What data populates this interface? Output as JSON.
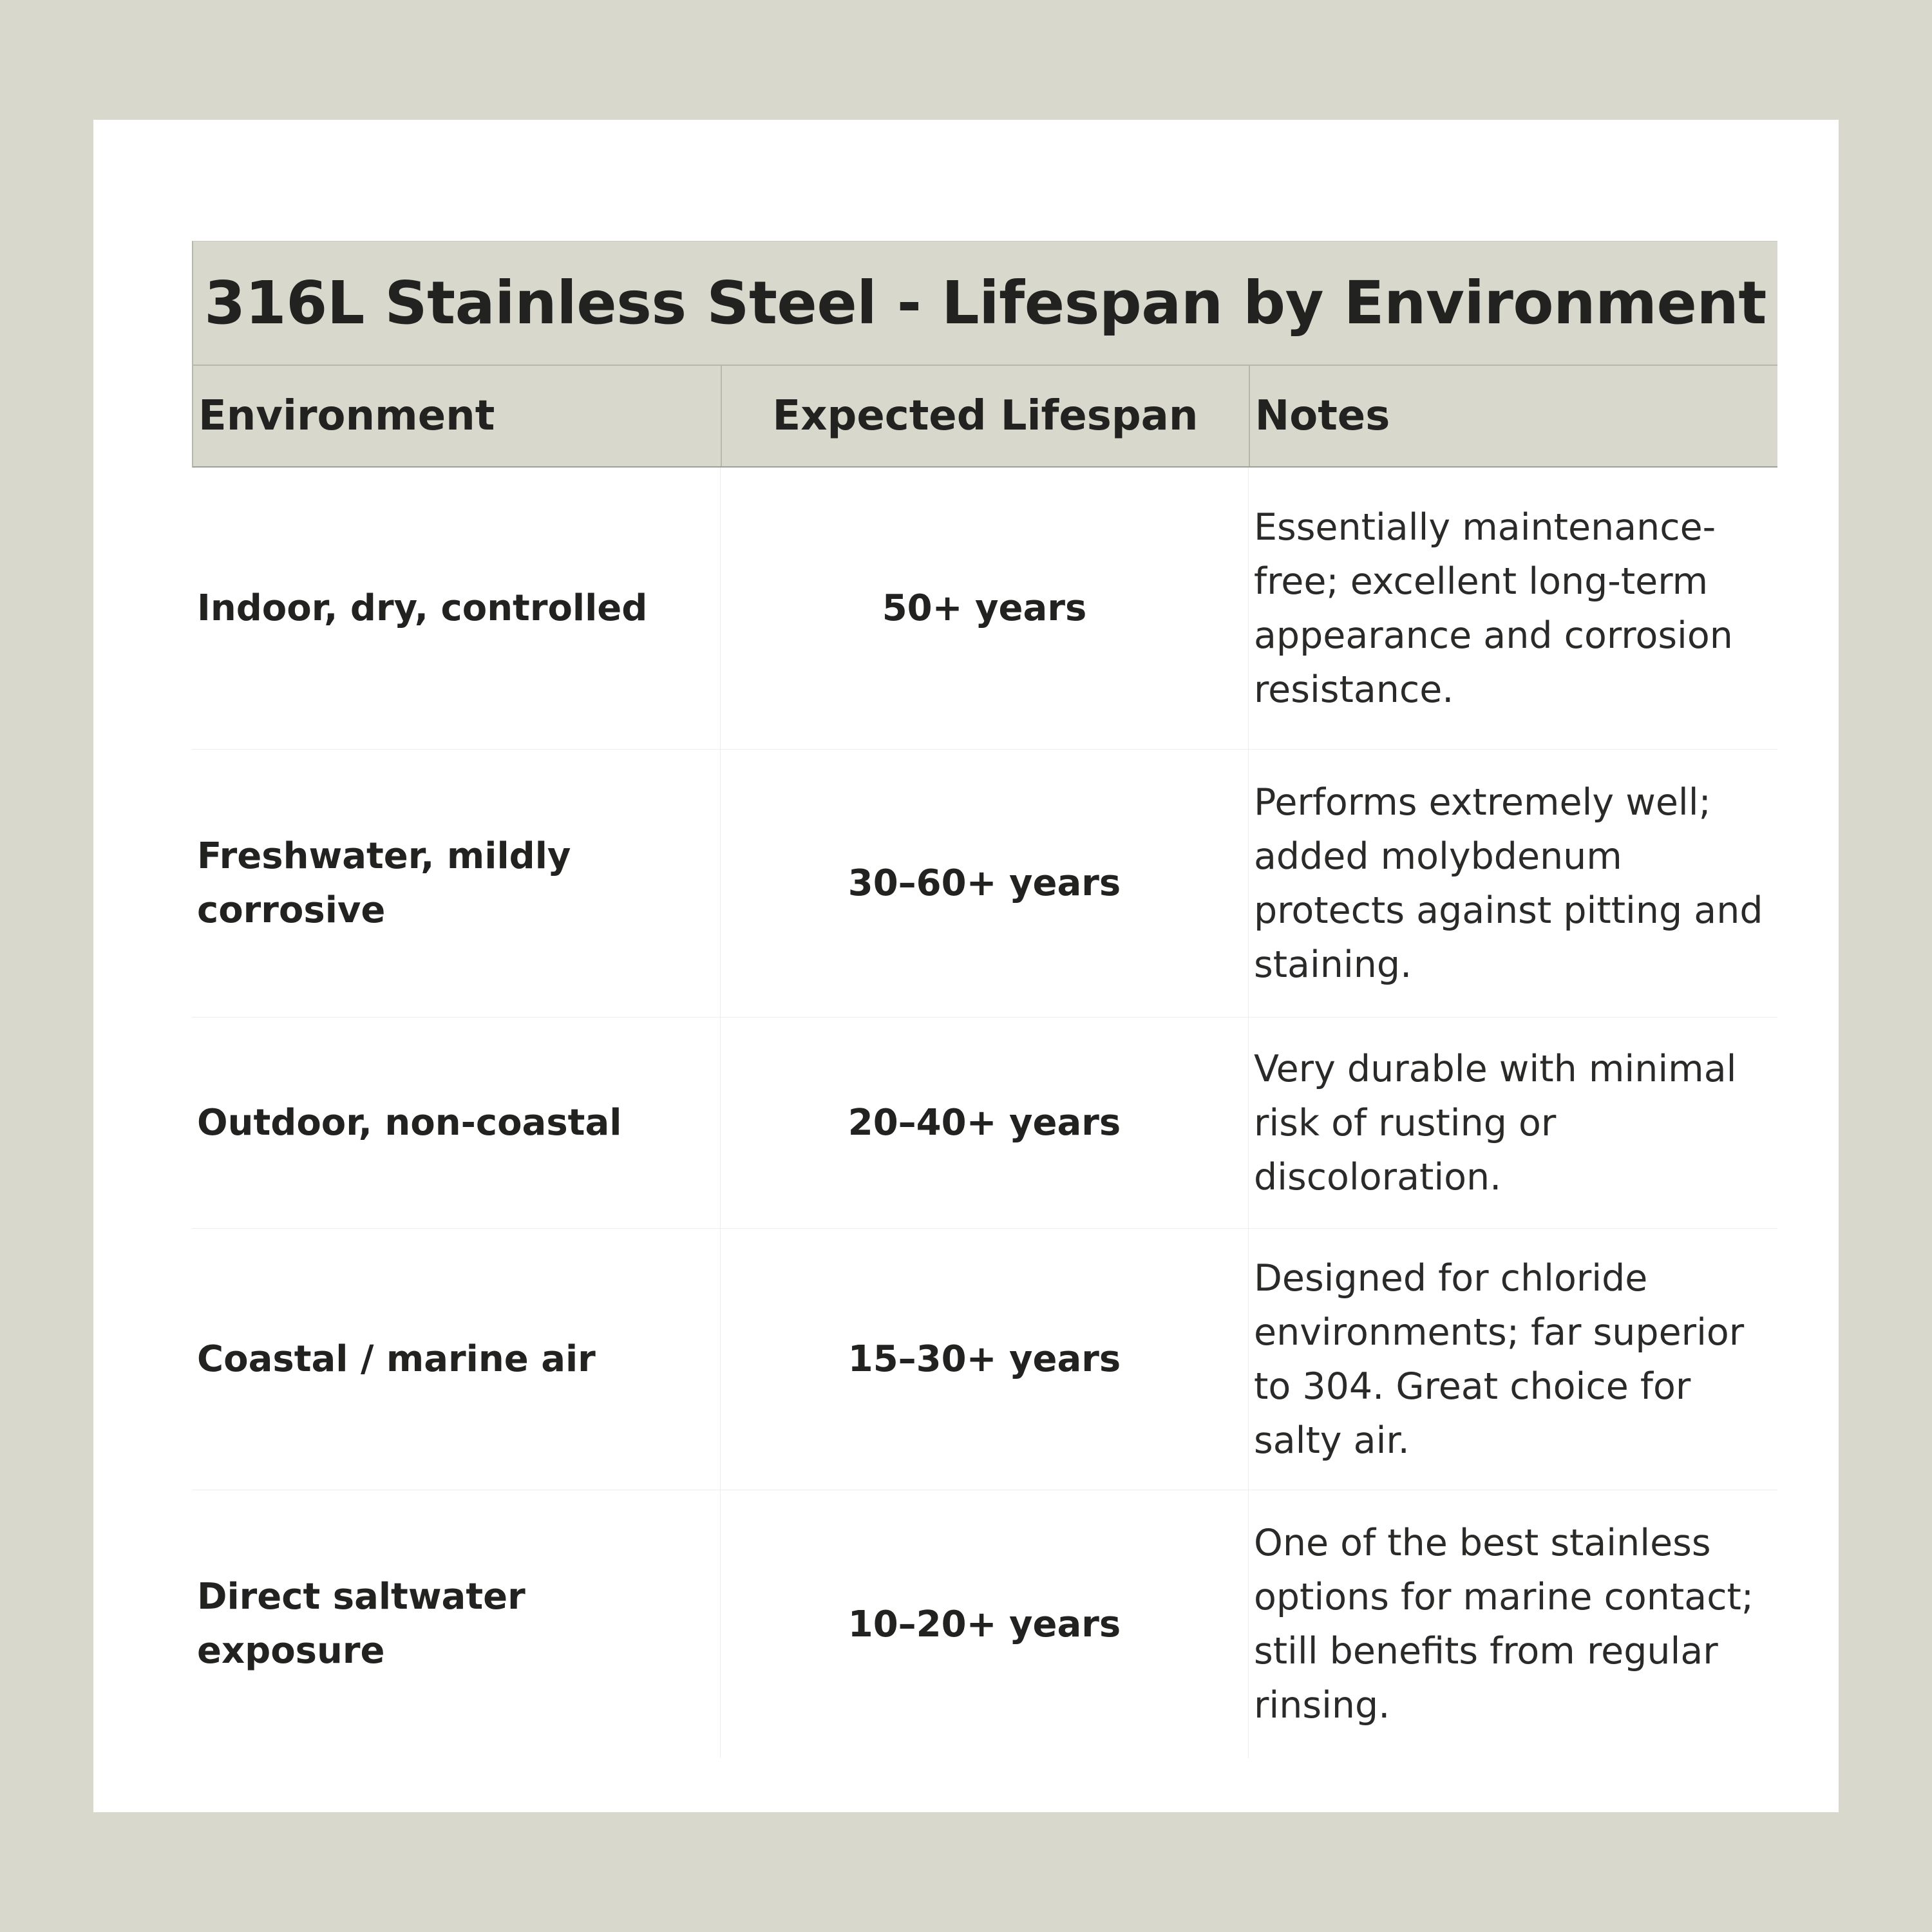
{
  "title": "316L Stainless Steel - Lifespan by Environment",
  "headers": {
    "environment": "Environment",
    "lifespan": "Expected Lifespan",
    "notes": "Notes"
  },
  "rows": [
    {
      "environment": "Indoor, dry, controlled",
      "lifespan": "50+ years",
      "notes": "Essentially maintenance-free; excellent long-term appearance and corrosion resistance."
    },
    {
      "environment": "Freshwater, mildly corrosive",
      "lifespan": "30–60+ years",
      "notes": "Performs extremely well; added molybdenum protects against pitting and staining."
    },
    {
      "environment": "Outdoor, non-coastal",
      "lifespan": "20–40+ years",
      "notes": "Very durable with minimal risk of rusting or discoloration."
    },
    {
      "environment": "Coastal / marine air",
      "lifespan": "15–30+ years",
      "notes": "Designed for chloride environments; far superior to 304. Great choice for salty air."
    },
    {
      "environment": "Direct saltwater exposure",
      "lifespan": "10–20+ years",
      "notes": "One of the best stainless options for marine contact; still benefits from regular rinsing."
    }
  ]
}
